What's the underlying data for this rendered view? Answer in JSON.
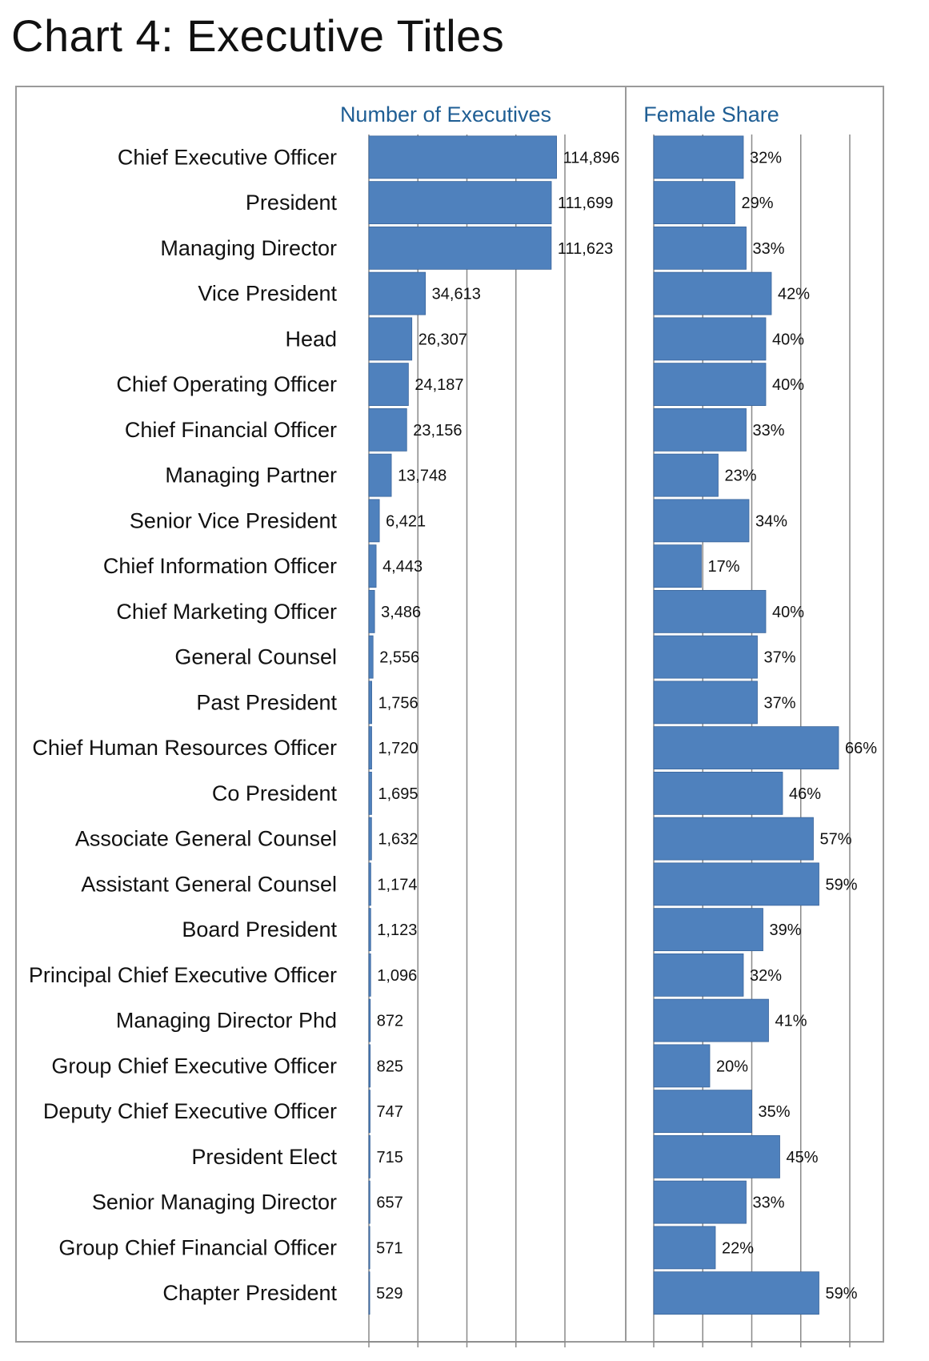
{
  "chart_data": {
    "type": "bar",
    "orientation": "horizontal",
    "title": "Chart 4: Executive Titles",
    "categories": [
      "Chief Executive Officer",
      "President",
      "Managing Director",
      "Vice President",
      "Head",
      "Chief Operating Officer",
      "Chief Financial Officer",
      "Managing Partner",
      "Senior Vice President",
      "Chief Information Officer",
      "Chief Marketing Officer",
      "General Counsel",
      "Past President",
      "Chief Human Resources Officer",
      "Co President",
      "Associate General Counsel",
      "Assistant General Counsel",
      "Board President",
      "Principal Chief Executive Officer",
      "Managing Director Phd",
      "Group Chief Executive Officer",
      "Deputy Chief Executive Officer",
      "President Elect",
      "Senior Managing Director",
      "Group Chief Financial Officer",
      "Chapter President"
    ],
    "panels": [
      {
        "name": "Number of Executives",
        "values": [
          114896,
          111699,
          111623,
          34613,
          26307,
          24187,
          23156,
          13748,
          6421,
          4443,
          3486,
          2556,
          1756,
          1720,
          1695,
          1632,
          1174,
          1123,
          1096,
          872,
          825,
          747,
          715,
          657,
          571,
          529
        ],
        "labels": [
          "114,896",
          "111,699",
          "111,623",
          "34,613",
          "26,307",
          "24,187",
          "23,156",
          "13,748",
          "6,421",
          "4,443",
          "3,486",
          "2,556",
          "1,756",
          "1,720",
          "1,695",
          "1,632",
          "1,174",
          "1,123",
          "1,096",
          "872",
          "825",
          "747",
          "715",
          "657",
          "571",
          "529"
        ],
        "xlim": [
          0,
          120000
        ],
        "gridlines": [
          0,
          30000,
          60000,
          90000,
          120000
        ]
      },
      {
        "name": "Female Share",
        "values": [
          32,
          29,
          33,
          42,
          40,
          40,
          33,
          23,
          34,
          17,
          40,
          37,
          37,
          66,
          46,
          57,
          59,
          39,
          32,
          41,
          20,
          35,
          45,
          33,
          22,
          59
        ],
        "labels": [
          "32%",
          "29%",
          "33%",
          "42%",
          "40%",
          "40%",
          "33%",
          "23%",
          "34%",
          "17%",
          "40%",
          "37%",
          "37%",
          "66%",
          "46%",
          "57%",
          "59%",
          "39%",
          "32%",
          "41%",
          "20%",
          "35%",
          "45%",
          "33%",
          "22%",
          "59%"
        ],
        "xlim": [
          0,
          70
        ],
        "gridlines": [
          0,
          17.5,
          35,
          52.5,
          70
        ]
      }
    ],
    "bar_color": "#4f81bd",
    "grid": true,
    "legend": "none"
  }
}
